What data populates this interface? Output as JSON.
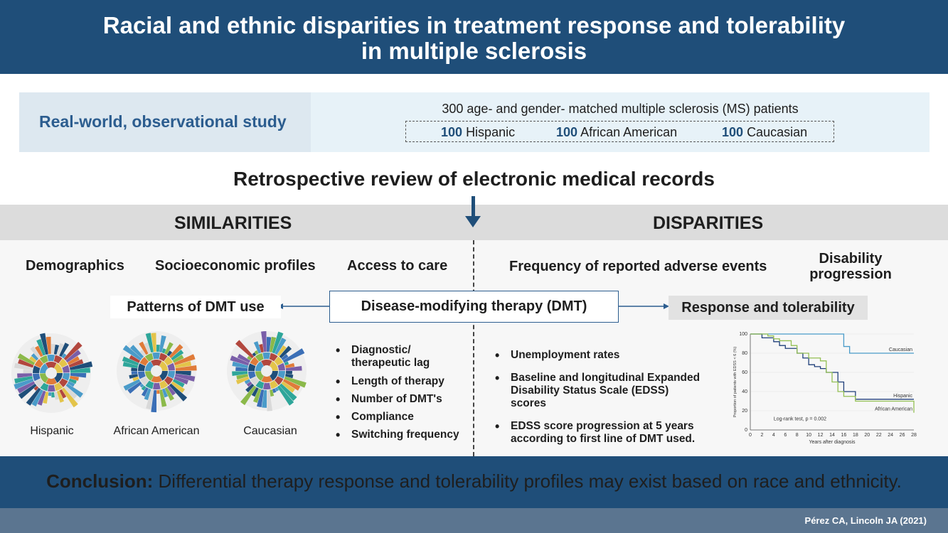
{
  "header": {
    "title_line1": "Racial and ethnic disparities in treatment response and tolerability",
    "title_line2": "in multiple sclerosis"
  },
  "study": {
    "type": "Real-world, observational study",
    "patients": "300 age- and gender- matched multiple sclerosis (MS) patients",
    "groups": [
      {
        "count": "100",
        "label": "Hispanic"
      },
      {
        "count": "100",
        "label": "African American"
      },
      {
        "count": "100",
        "label": "Caucasian"
      }
    ]
  },
  "review": "Retrospective review of electronic medical records",
  "similarities": {
    "heading": "SIMILARITIES",
    "topics": [
      "Demographics",
      "Socioeconomic profiles",
      "Access to care"
    ],
    "patterns_label": "Patterns of DMT use",
    "sunbursts": [
      "Hispanic",
      "African American",
      "Caucasian"
    ],
    "bullets": [
      "Diagnostic/ therapeutic lag",
      "Length of therapy",
      "Number of DMT's",
      "Compliance",
      "Switching frequency"
    ]
  },
  "dmt": "Disease-modifying therapy (DMT)",
  "disparities": {
    "heading": "DISPARITIES",
    "topic_events": "Frequency of reported adverse events",
    "topic_disability_1": "Disability",
    "topic_disability_2": "progression",
    "response_label": "Response and tolerability",
    "bullets": [
      "Unemployment rates",
      "Baseline and longitudinal Expanded Disability Status Scale (EDSS) scores",
      "EDSS score progression at 5 years according to first line of DMT used."
    ]
  },
  "chart_data": {
    "type": "line",
    "xlabel": "Years after diagnosis",
    "ylabel": "Proportion of patients with EDSS < 6 (%)",
    "xlim": [
      0,
      28
    ],
    "ylim": [
      0,
      100
    ],
    "xticks": [
      0,
      2,
      4,
      6,
      8,
      10,
      12,
      14,
      16,
      18,
      20,
      22,
      24,
      26,
      28
    ],
    "yticks": [
      0,
      20,
      40,
      60,
      80,
      100
    ],
    "annotation": "Log-rank test, p = 0.002",
    "series": [
      {
        "name": "Caucasian",
        "color": "#4a9bc9",
        "x": [
          0,
          4,
          8,
          10,
          11,
          12,
          15,
          16,
          17,
          28
        ],
        "y": [
          100,
          100,
          100,
          100,
          100,
          100,
          100,
          87,
          80,
          80
        ]
      },
      {
        "name": "Hispanic",
        "color": "#1f3f7a",
        "x": [
          0,
          2,
          4,
          5,
          6,
          8,
          9,
          10,
          11,
          12,
          13,
          15,
          16,
          18,
          28
        ],
        "y": [
          100,
          96,
          92,
          88,
          85,
          80,
          75,
          68,
          66,
          64,
          60,
          50,
          40,
          32,
          32
        ]
      },
      {
        "name": "African American",
        "color": "#94c054",
        "x": [
          0,
          3,
          4,
          5,
          6,
          7,
          8,
          10,
          12,
          13,
          14,
          15,
          16,
          18,
          28
        ],
        "y": [
          100,
          98,
          95,
          93,
          93,
          88,
          80,
          75,
          72,
          60,
          50,
          40,
          35,
          30,
          18
        ]
      }
    ]
  },
  "conclusion": {
    "label": "Conclusion:",
    "text": " Differential therapy response and tolerability profiles may exist based on race and ethnicity."
  },
  "citation": "Pérez CA, Lincoln JA (2021)",
  "colors": {
    "primary": "#1f4e79",
    "accent": "#2c5d8f",
    "band": "#dcdcdc"
  }
}
